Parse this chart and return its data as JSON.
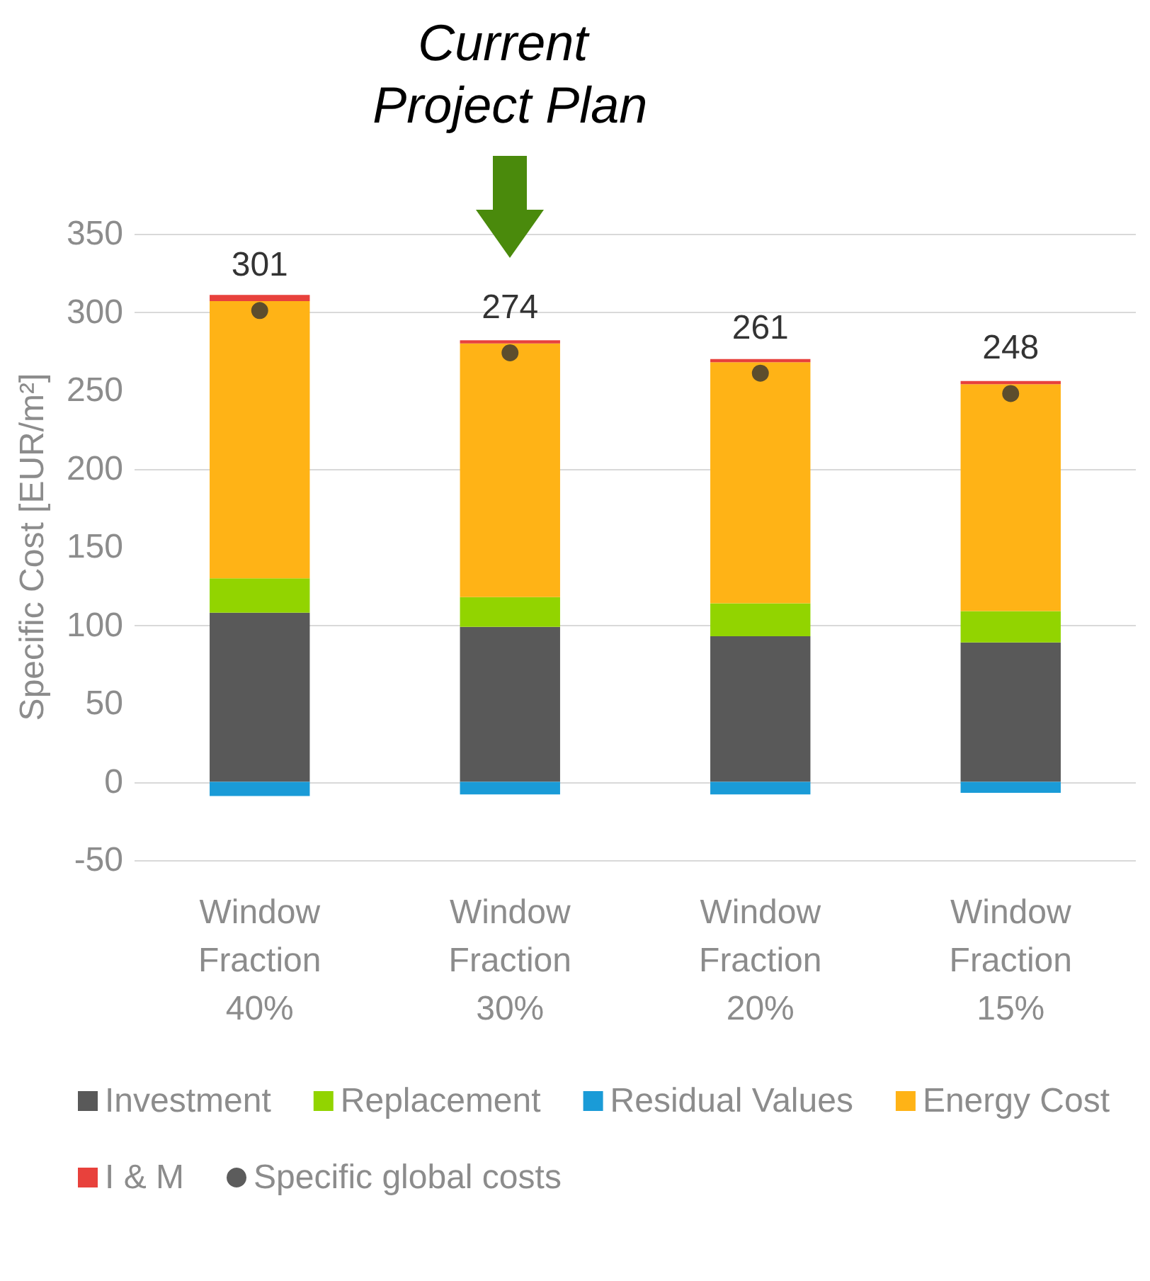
{
  "chart_data": {
    "type": "bar",
    "stacked": true,
    "ylabel": "Specific Cost [EUR/m²]",
    "categories": [
      "Window Fraction 40%",
      "Window Fraction 30%",
      "Window Fraction 20%",
      "Window Fraction 15%"
    ],
    "series": [
      {
        "name": "Investment",
        "color": "#595959",
        "values": [
          108,
          99,
          93,
          89
        ]
      },
      {
        "name": "Replacement",
        "color": "#92d400",
        "values": [
          22,
          19,
          21,
          20
        ]
      },
      {
        "name": "Residual Values",
        "color": "#1a9bd7",
        "values": [
          -9,
          -8,
          -8,
          -7
        ]
      },
      {
        "name": "Energy Cost",
        "color": "#ffb316",
        "values": [
          177,
          162,
          154,
          145
        ]
      },
      {
        "name": "I & M",
        "color": "#e8413c",
        "values": [
          4,
          2,
          2,
          2
        ]
      },
      {
        "name": "Specific global costs",
        "type": "scatter",
        "color": "#333333",
        "values": [
          301,
          274,
          261,
          248
        ],
        "value_labels": [
          "301",
          "274",
          "261",
          "248"
        ]
      }
    ],
    "ylim": [
      -50,
      350
    ],
    "yticks": [
      -50,
      0,
      50,
      100,
      150,
      200,
      250,
      300,
      350
    ],
    "grid": "y",
    "legend": "bottom",
    "marker": "circle",
    "annotations": [
      "Current Project Plan"
    ]
  }
}
